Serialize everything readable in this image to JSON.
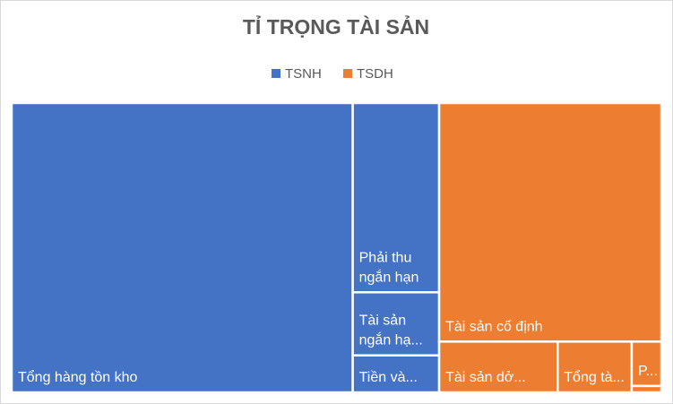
{
  "chart_data": {
    "type": "treemap",
    "title": "TỈ TRỌNG TÀI SẢN",
    "series": [
      {
        "name": "TSNH",
        "color": "#4472c4",
        "labels": [
          "Tổng hàng tồn kho",
          "Phải thu ngắn hạn",
          "Tài sản ngắn hạ...",
          "Tiền và..."
        ],
        "values": [
          52.5,
          8.7,
          2.9,
          1.7
        ]
      },
      {
        "name": "TSDH",
        "color": "#ed7d31",
        "labels": [
          "Tài sản cố định",
          "Tài sản dở...",
          "Tổng tà...",
          "P...",
          null
        ],
        "values": [
          28.2,
          3.2,
          2.0,
          0.7,
          0.1
        ]
      }
    ],
    "legend": "top"
  }
}
